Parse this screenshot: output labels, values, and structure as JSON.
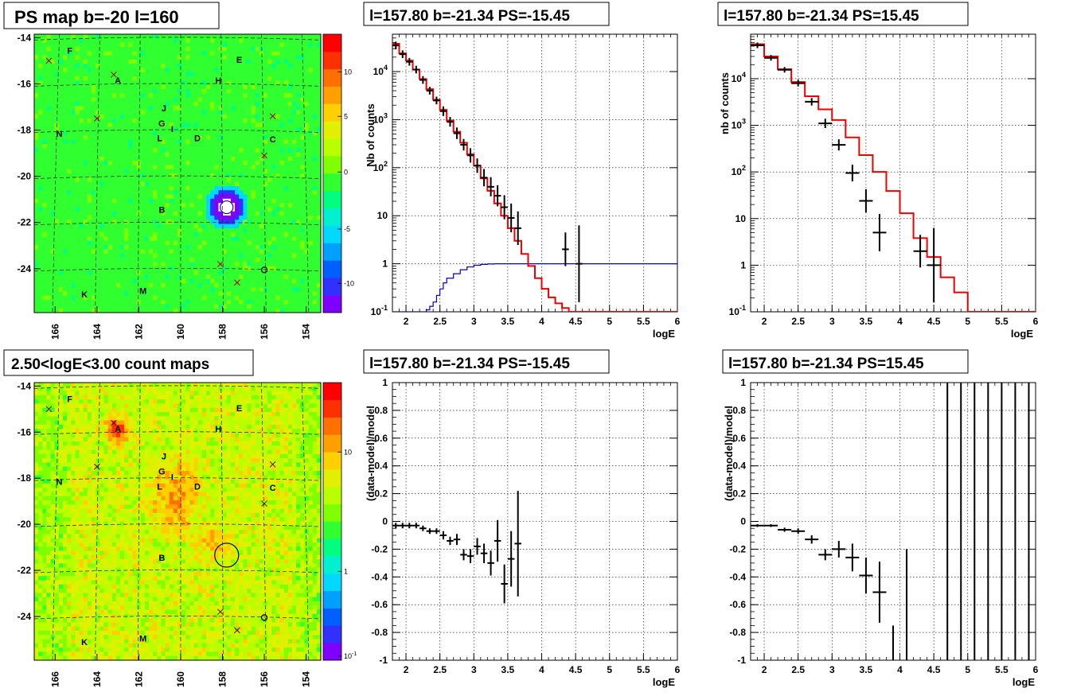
{
  "chart_data": [
    {
      "id": "map1",
      "type": "heatmap",
      "title": "PS map b=-20 l=160",
      "x_ticks": [
        "166",
        "164",
        "162",
        "160",
        "158",
        "156",
        "154"
      ],
      "y_ticks": [
        "-14",
        "-16",
        "-18",
        "-20",
        "-22",
        "-24"
      ],
      "colorbar_ticks": [
        "10",
        "5",
        "0",
        "-5",
        "-10"
      ],
      "labels": [
        {
          "t": "F",
          "l": 165.3,
          "b": -14.55
        },
        {
          "t": "E",
          "l": 157.2,
          "b": -14.95
        },
        {
          "t": "A",
          "l": 163.0,
          "b": -15.85
        },
        {
          "t": "H",
          "l": 158.2,
          "b": -15.85
        },
        {
          "t": "J",
          "l": 160.8,
          "b": -17.05
        },
        {
          "t": "G",
          "l": 160.9,
          "b": -17.7
        },
        {
          "t": "I",
          "l": 160.4,
          "b": -17.95
        },
        {
          "t": "N",
          "l": 165.8,
          "b": -18.15
        },
        {
          "t": "L",
          "l": 161.0,
          "b": -18.35
        },
        {
          "t": "D",
          "l": 159.2,
          "b": -18.35
        },
        {
          "t": "C",
          "l": 155.6,
          "b": -18.4
        },
        {
          "t": "B",
          "l": 160.9,
          "b": -21.45
        },
        {
          "t": "K",
          "l": 164.6,
          "b": -25.1
        },
        {
          "t": "M",
          "l": 161.8,
          "b": -24.95
        }
      ],
      "crosses": [
        [
          166.3,
          -15.0
        ],
        [
          163.2,
          -15.6
        ],
        [
          164.0,
          -17.5
        ],
        [
          155.6,
          -17.4
        ],
        [
          156.0,
          -19.1
        ],
        [
          158.1,
          -23.8
        ],
        [
          157.3,
          -24.6
        ]
      ],
      "circles": [
        [
          156.0,
          -24.05
        ]
      ],
      "hotspot": {
        "l": 157.8,
        "b": -21.34
      }
    },
    {
      "id": "spec1",
      "type": "line",
      "title": "l=157.80 b=-21.34 PS=-15.45",
      "xlabel": "logE",
      "ylabel": "Nb of counts",
      "xlim": [
        1.8,
        6
      ],
      "ylim": [
        0.1,
        60000
      ],
      "yscale": "log",
      "x_ticks": [
        "2",
        "2.5",
        "3",
        "3.5",
        "4",
        "4.5",
        "5",
        "5.5",
        "6"
      ],
      "y_ticks": [
        "10^-1",
        "1",
        "10",
        "10^2",
        "10^3",
        "10^4"
      ],
      "model_edges": [
        1.8,
        1.9,
        2.0,
        2.1,
        2.2,
        2.3,
        2.4,
        2.5,
        2.6,
        2.7,
        2.8,
        2.9,
        3.0,
        3.1,
        3.2,
        3.3,
        3.4,
        3.5,
        3.6,
        3.7,
        3.8,
        3.9,
        4.0,
        4.1,
        4.2,
        4.3,
        4.4,
        4.5,
        4.6,
        6.0
      ],
      "model_values": [
        38000,
        24000,
        17000,
        11000,
        7000,
        4300,
        2600,
        1600,
        960,
        560,
        330,
        190,
        110,
        60,
        33,
        18,
        10,
        5.5,
        3.0,
        1.6,
        0.9,
        0.5,
        0.3,
        0.2,
        0.15,
        0.12,
        0.1,
        0.1,
        0.1
      ],
      "ps_edges": [
        1.8,
        2.2,
        2.3,
        2.35,
        2.4,
        2.45,
        2.5,
        2.55,
        2.6,
        2.7,
        2.8,
        2.9,
        3.0,
        3.1,
        3.2,
        3.3,
        3.4,
        3.5,
        6.0
      ],
      "ps_values": [
        0.1,
        0.1,
        0.11,
        0.13,
        0.16,
        0.22,
        0.3,
        0.4,
        0.5,
        0.62,
        0.75,
        0.86,
        0.93,
        0.97,
        0.99,
        1.0,
        1.0,
        1.0
      ],
      "points": [
        [
          1.85,
          35000,
          0.05,
          0.08
        ],
        [
          1.95,
          23000,
          0.05,
          0.08
        ],
        [
          2.05,
          16000,
          0.05,
          0.08
        ],
        [
          2.15,
          11000,
          0.05,
          0.08
        ],
        [
          2.25,
          6700,
          0.05,
          0.08
        ],
        [
          2.35,
          4000,
          0.05,
          0.08
        ],
        [
          2.45,
          2500,
          0.05,
          0.08
        ],
        [
          2.55,
          1500,
          0.05,
          0.1
        ],
        [
          2.65,
          900,
          0.05,
          0.1
        ],
        [
          2.75,
          520,
          0.05,
          0.12
        ],
        [
          2.85,
          300,
          0.05,
          0.12
        ],
        [
          2.95,
          180,
          0.05,
          0.15
        ],
        [
          3.05,
          110,
          0.05,
          0.15
        ],
        [
          3.15,
          62,
          0.05,
          0.18
        ],
        [
          3.25,
          40,
          0.05,
          0.2
        ],
        [
          3.35,
          26,
          0.05,
          0.22
        ],
        [
          3.45,
          15,
          0.05,
          0.25
        ],
        [
          3.55,
          9,
          0.05,
          0.3
        ],
        [
          3.65,
          5.5,
          0.05,
          0.35
        ],
        [
          4.35,
          2,
          0.05,
          0.35
        ],
        [
          4.55,
          1,
          0.05,
          0.8
        ]
      ]
    },
    {
      "id": "spec2",
      "type": "line",
      "title": "l=157.80 b=-21.34 PS=15.45",
      "xlabel": "logE",
      "ylabel": "nb of counts",
      "xlim": [
        1.8,
        6
      ],
      "ylim": [
        0.1,
        90000
      ],
      "yscale": "log",
      "x_ticks": [
        "2",
        "2.5",
        "3",
        "3.5",
        "4",
        "4.5",
        "5",
        "5.5",
        "6"
      ],
      "y_ticks": [
        "10^-1",
        "1",
        "10",
        "10^2",
        "10^3",
        "10^4"
      ],
      "model_edges": [
        1.8,
        2.0,
        2.2,
        2.4,
        2.6,
        2.8,
        3.0,
        3.2,
        3.4,
        3.6,
        3.8,
        4.0,
        4.2,
        4.4,
        4.6,
        4.8,
        5.0,
        6.0
      ],
      "model_values": [
        55000,
        30000,
        16000,
        8500,
        4200,
        2200,
        1300,
        550,
        230,
        100,
        39,
        13,
        3.8,
        1.5,
        0.55,
        0.26,
        0.1
      ],
      "points": [
        [
          1.9,
          52000,
          0.1,
          0.06
        ],
        [
          2.1,
          28000,
          0.1,
          0.06
        ],
        [
          2.3,
          15500,
          0.1,
          0.06
        ],
        [
          2.5,
          8000,
          0.1,
          0.07
        ],
        [
          2.7,
          3200,
          0.1,
          0.08
        ],
        [
          2.9,
          1100,
          0.1,
          0.1
        ],
        [
          3.1,
          380,
          0.1,
          0.12
        ],
        [
          3.3,
          95,
          0.1,
          0.18
        ],
        [
          3.5,
          24,
          0.1,
          0.25
        ],
        [
          3.7,
          5,
          0.1,
          0.4
        ],
        [
          4.3,
          2,
          0.1,
          0.35
        ],
        [
          4.5,
          1,
          0.1,
          0.8
        ]
      ]
    },
    {
      "id": "map2",
      "type": "heatmap",
      "title": "2.50<logE<3.00 count maps",
      "x_ticks": [
        "166",
        "164",
        "162",
        "160",
        "158",
        "156",
        "154"
      ],
      "y_ticks": [
        "-14",
        "-16",
        "-18",
        "-20",
        "-22",
        "-24"
      ],
      "colorbar_ticks": [
        "10",
        "1",
        "10^-1"
      ],
      "labels": [
        {
          "t": "F",
          "l": 165.3,
          "b": -14.55
        },
        {
          "t": "E",
          "l": 157.2,
          "b": -14.95
        },
        {
          "t": "A",
          "l": 163.0,
          "b": -15.85
        },
        {
          "t": "H",
          "l": 158.2,
          "b": -15.85
        },
        {
          "t": "J",
          "l": 160.8,
          "b": -17.05
        },
        {
          "t": "G",
          "l": 160.9,
          "b": -17.7
        },
        {
          "t": "I",
          "l": 160.4,
          "b": -17.95
        },
        {
          "t": "N",
          "l": 165.8,
          "b": -18.15
        },
        {
          "t": "L",
          "l": 161.0,
          "b": -18.35
        },
        {
          "t": "D",
          "l": 159.2,
          "b": -18.35
        },
        {
          "t": "C",
          "l": 155.6,
          "b": -18.4
        },
        {
          "t": "B",
          "l": 160.9,
          "b": -21.45
        },
        {
          "t": "K",
          "l": 164.6,
          "b": -25.1
        },
        {
          "t": "M",
          "l": 161.8,
          "b": -24.95
        }
      ],
      "crosses": [
        [
          166.3,
          -15.0
        ],
        [
          163.2,
          -15.6
        ],
        [
          164.0,
          -17.5
        ],
        [
          155.6,
          -17.4
        ],
        [
          156.0,
          -19.1
        ],
        [
          158.1,
          -23.8
        ],
        [
          157.3,
          -24.6
        ]
      ],
      "circles": [
        [
          156.0,
          -24.05
        ]
      ],
      "ring": {
        "l": 157.8,
        "b": -21.34
      }
    },
    {
      "id": "res1",
      "type": "scatter",
      "title": "l=157.80 b=-21.34 PS=-15.45",
      "xlabel": "logE",
      "ylabel": "(data-model)/model",
      "xlim": [
        1.8,
        6
      ],
      "ylim": [
        -1,
        1
      ],
      "x_ticks": [
        "2",
        "2.5",
        "3",
        "3.5",
        "4",
        "4.5",
        "5",
        "5.5",
        "6"
      ],
      "y_ticks": [
        "-1",
        "-0.8",
        "-0.6",
        "-0.4",
        "-0.2",
        "0",
        "0.2",
        "0.4",
        "0.6",
        "0.8",
        "1"
      ],
      "points": [
        [
          1.85,
          -0.03,
          0.05,
          0.02
        ],
        [
          1.95,
          -0.03,
          0.05,
          0.02
        ],
        [
          2.05,
          -0.03,
          0.05,
          0.02
        ],
        [
          2.15,
          -0.03,
          0.05,
          0.02
        ],
        [
          2.25,
          -0.05,
          0.05,
          0.02
        ],
        [
          2.35,
          -0.07,
          0.05,
          0.02
        ],
        [
          2.45,
          -0.07,
          0.05,
          0.02
        ],
        [
          2.55,
          -0.1,
          0.05,
          0.03
        ],
        [
          2.65,
          -0.14,
          0.05,
          0.03
        ],
        [
          2.75,
          -0.13,
          0.05,
          0.04
        ],
        [
          2.85,
          -0.24,
          0.05,
          0.04
        ],
        [
          2.95,
          -0.25,
          0.05,
          0.05
        ],
        [
          3.05,
          -0.18,
          0.05,
          0.06
        ],
        [
          3.15,
          -0.23,
          0.05,
          0.07
        ],
        [
          3.25,
          -0.3,
          0.05,
          0.09
        ],
        [
          3.35,
          -0.14,
          0.05,
          0.15
        ],
        [
          3.45,
          -0.45,
          0.05,
          0.14
        ],
        [
          3.55,
          -0.27,
          0.05,
          0.2
        ],
        [
          3.65,
          -0.16,
          0.05,
          0.38
        ]
      ]
    },
    {
      "id": "res2",
      "type": "scatter",
      "title": "l=157.80 b=-21.34 PS=15.45",
      "xlabel": "logE",
      "ylabel": "(data-model)/model",
      "xlim": [
        1.8,
        6
      ],
      "ylim": [
        -1,
        1
      ],
      "x_ticks": [
        "2",
        "2.5",
        "3",
        "3.5",
        "4",
        "4.5",
        "5",
        "5.5",
        "6"
      ],
      "y_ticks": [
        "-1",
        "-0.8",
        "-0.6",
        "-0.4",
        "-0.2",
        "0",
        "0.2",
        "0.4",
        "0.6",
        "0.8",
        "1"
      ],
      "points": [
        [
          1.9,
          -0.03,
          0.1,
          0.01
        ],
        [
          2.1,
          -0.03,
          0.1,
          0.01
        ],
        [
          2.3,
          -0.06,
          0.1,
          0.015
        ],
        [
          2.5,
          -0.07,
          0.1,
          0.02
        ],
        [
          2.7,
          -0.13,
          0.1,
          0.03
        ],
        [
          2.9,
          -0.24,
          0.1,
          0.04
        ],
        [
          3.1,
          -0.2,
          0.1,
          0.06
        ],
        [
          3.3,
          -0.26,
          0.1,
          0.1
        ],
        [
          3.5,
          -0.39,
          0.1,
          0.13
        ],
        [
          3.7,
          -0.51,
          0.1,
          0.22
        ]
      ],
      "vlines": [
        [
          3.9,
          -1,
          -0.75
        ],
        [
          4.1,
          -1,
          -0.2
        ],
        [
          4.7,
          -1,
          1
        ],
        [
          4.9,
          -1,
          1
        ],
        [
          5.1,
          -1,
          1
        ],
        [
          5.3,
          -1,
          1
        ],
        [
          5.5,
          -1,
          1
        ],
        [
          5.7,
          -1,
          1
        ],
        [
          5.9,
          -1,
          1
        ]
      ]
    }
  ]
}
